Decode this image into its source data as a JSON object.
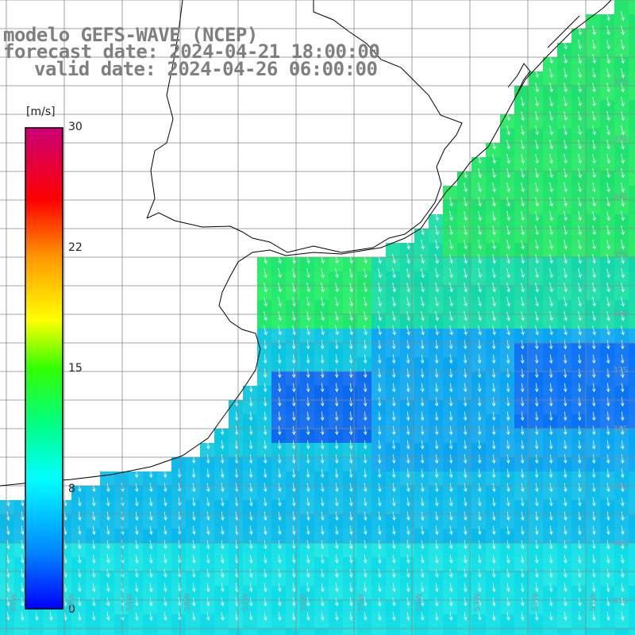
{
  "header": {
    "line1": "modelo GEFS-WAVE (NCEP)",
    "line2": "forecast date: 2024-04-21 18:00:00",
    "line3": "valid date: 2024-04-26 06:00:00"
  },
  "colorbar": {
    "unit": "[m/s]",
    "ticks": [
      "30",
      "22",
      "15",
      "8",
      "0"
    ],
    "values": [
      30,
      22,
      15,
      8,
      0
    ],
    "max": 30,
    "colors": [
      "#0000ff",
      "#00aaff",
      "#00ffff",
      "#00ff66",
      "#33ff00",
      "#ffff00",
      "#ffaa00",
      "#ff3300",
      "#ff0000",
      "#cc0077"
    ]
  },
  "grid": {
    "lat_labels": [
      "32S",
      "33S",
      "34S",
      "35S",
      "36S",
      "37S",
      "38S",
      "39S",
      "40S",
      "41S"
    ],
    "lon_labels": [
      "61W",
      "60W",
      "59W",
      "58W",
      "57W",
      "56W",
      "55W",
      "54W",
      "53W",
      "52W",
      "51W"
    ]
  },
  "legend_colors": {
    "land": "#ffffff",
    "grid_line": "#888888",
    "coast": "#000000",
    "arrow": "#ffffff"
  }
}
